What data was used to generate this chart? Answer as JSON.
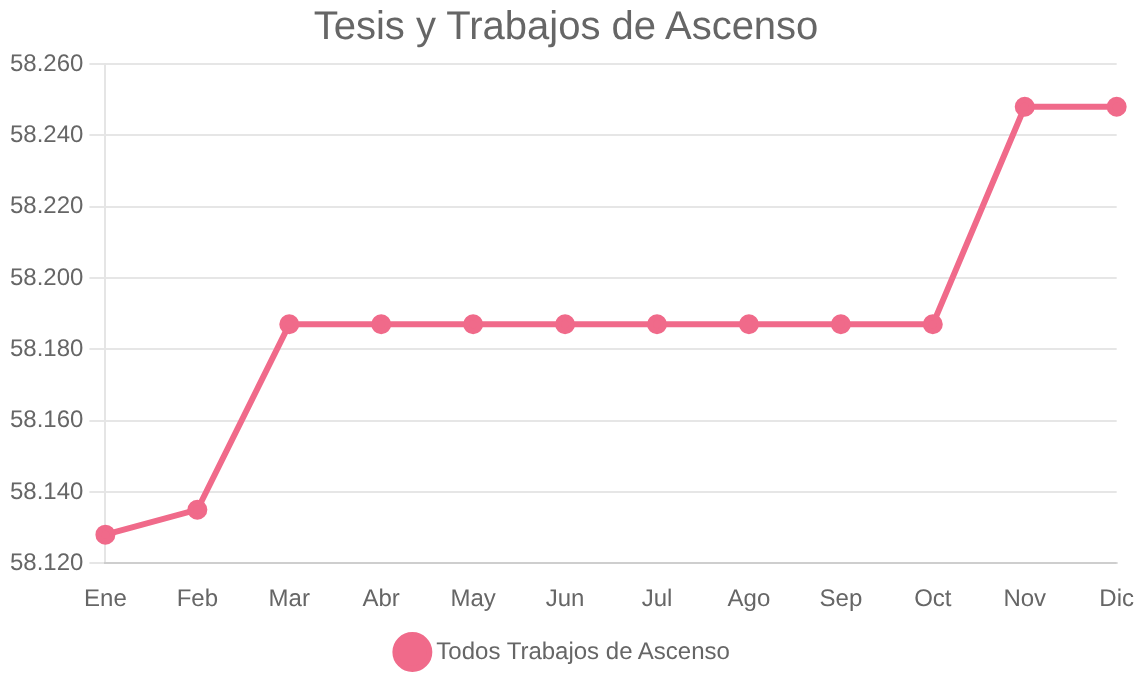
{
  "chart_data": {
    "type": "line",
    "title": "Tesis y Trabajos de Ascenso",
    "categories": [
      "Ene",
      "Feb",
      "Mar",
      "Abr",
      "May",
      "Jun",
      "Jul",
      "Ago",
      "Sep",
      "Oct",
      "Nov",
      "Dic"
    ],
    "series": [
      {
        "name": "Todos Trabajos de Ascenso",
        "color": "#f06a8a",
        "values": [
          58.128,
          58.135,
          58.187,
          58.187,
          58.187,
          58.187,
          58.187,
          58.187,
          58.187,
          58.187,
          58.248,
          58.248
        ]
      }
    ],
    "ylim": [
      58.12,
      58.26
    ],
    "yticks": [
      {
        "value": 58.12,
        "label": "58.120"
      },
      {
        "value": 58.14,
        "label": "58.140"
      },
      {
        "value": 58.16,
        "label": "58.160"
      },
      {
        "value": 58.18,
        "label": "58.180"
      },
      {
        "value": 58.2,
        "label": "58.200"
      },
      {
        "value": 58.22,
        "label": "58.220"
      },
      {
        "value": 58.24,
        "label": "58.240"
      },
      {
        "value": 58.26,
        "label": "58.260"
      }
    ],
    "grid": "y",
    "legend": "bottom",
    "marker": "circle",
    "line_style": "solid"
  }
}
